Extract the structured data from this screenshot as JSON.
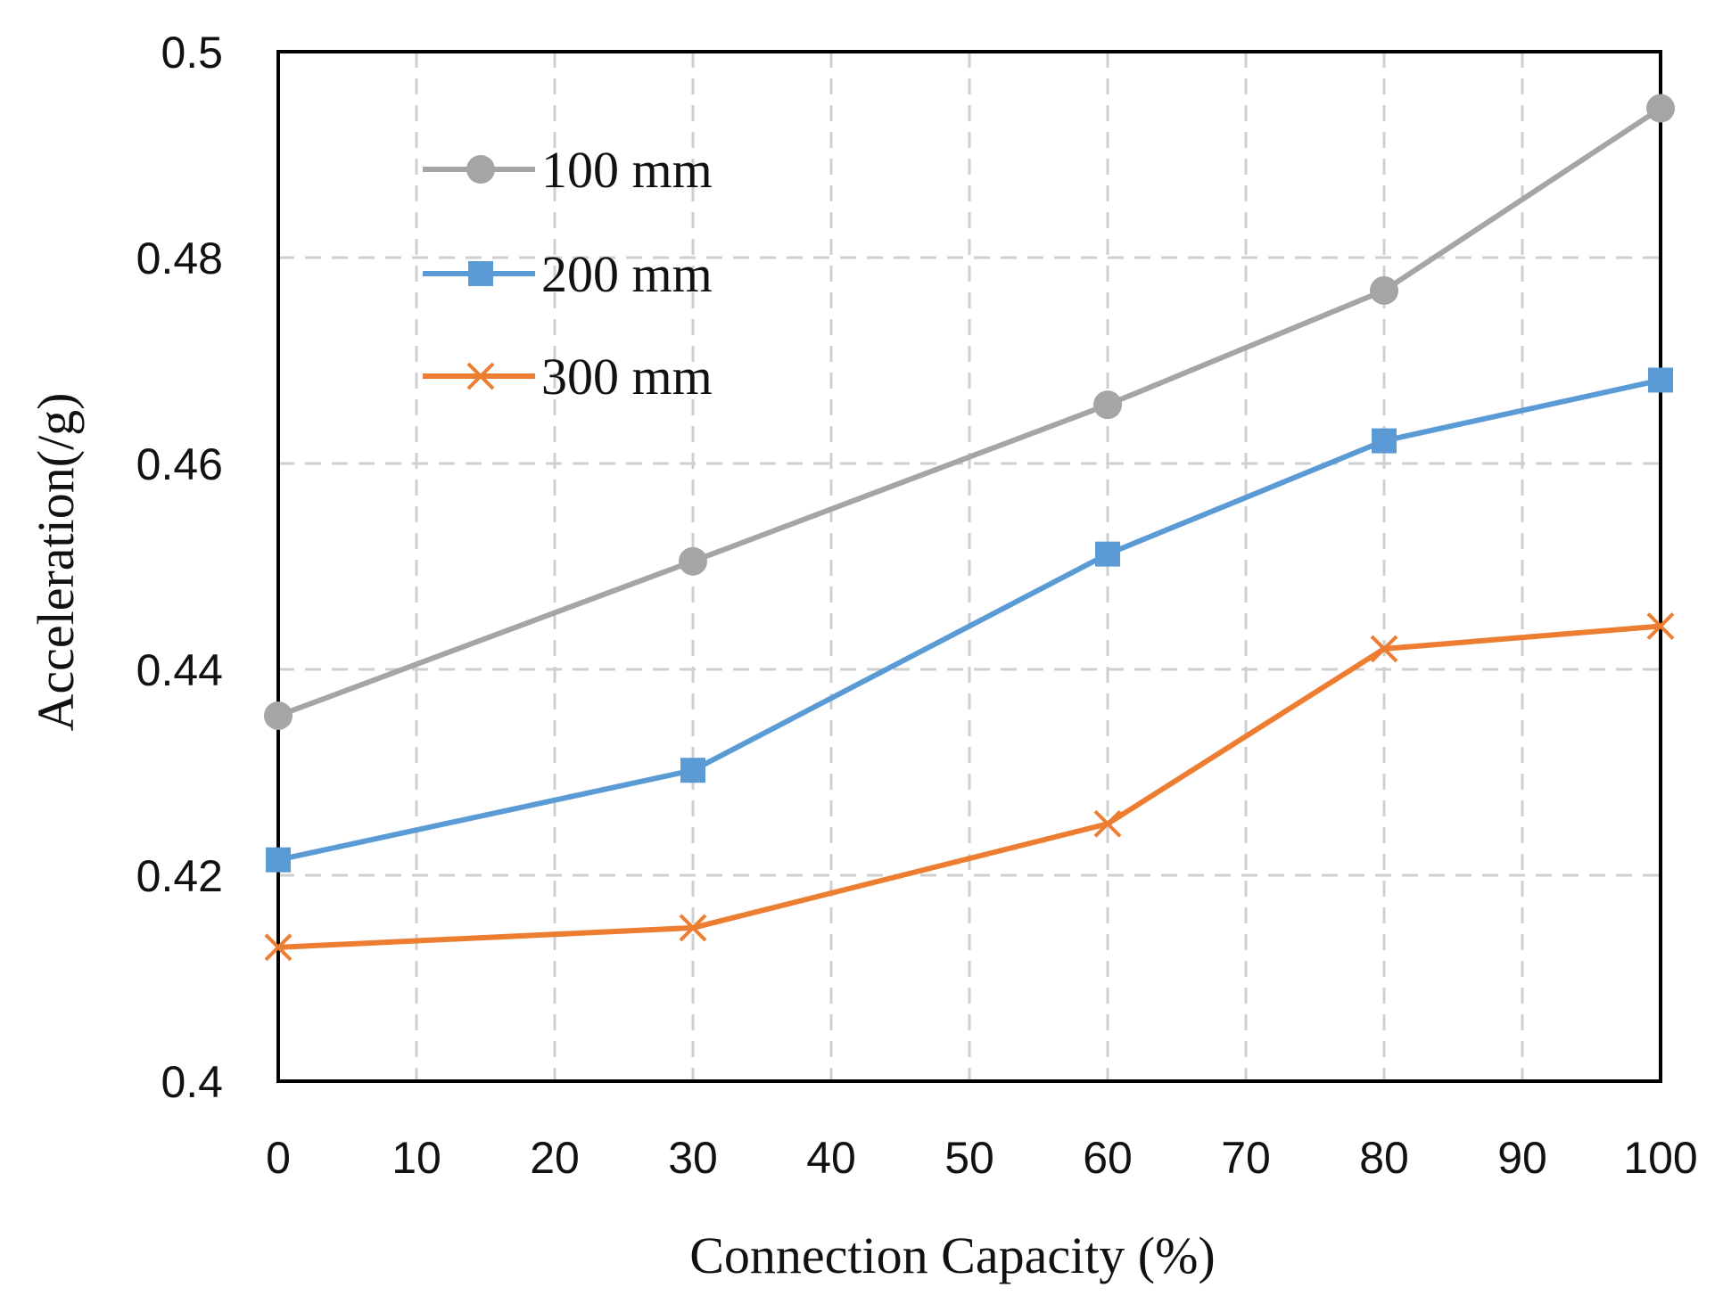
{
  "chart_data": {
    "type": "line",
    "title": "",
    "xlabel": "Connection Capacity (%)",
    "ylabel": "Acceleration(/g)",
    "xlim": [
      0,
      100
    ],
    "ylim": [
      0.4,
      0.5
    ],
    "x_ticks": [
      0,
      10,
      20,
      30,
      40,
      50,
      60,
      70,
      80,
      90,
      100
    ],
    "x_tick_labels": [
      "0",
      "10",
      "20",
      "30",
      "40",
      "50",
      "60",
      "70",
      "80",
      "90",
      "100"
    ],
    "y_ticks": [
      0.4,
      0.42,
      0.44,
      0.46,
      0.48,
      0.5
    ],
    "y_tick_labels": [
      "0.4",
      "0.42",
      "0.44",
      "0.46",
      "0.48",
      "0.5"
    ],
    "grid": true,
    "grid_style": "dashed",
    "legend_position": "top-left",
    "x": [
      0,
      30,
      60,
      80,
      100
    ],
    "series": [
      {
        "name": "100 mm",
        "color": "#a5a5a5",
        "marker": "circle",
        "values": [
          0.4355,
          0.4505,
          0.4657,
          0.4768,
          0.4945
        ]
      },
      {
        "name": "200 mm",
        "color": "#5b9bd5",
        "marker": "square",
        "values": [
          0.4215,
          0.4302,
          0.4512,
          0.4622,
          0.4681
        ]
      },
      {
        "name": "300 mm",
        "color": "#ed7d31",
        "marker": "x",
        "values": [
          0.413,
          0.4149,
          0.425,
          0.442,
          0.4442
        ]
      }
    ]
  }
}
